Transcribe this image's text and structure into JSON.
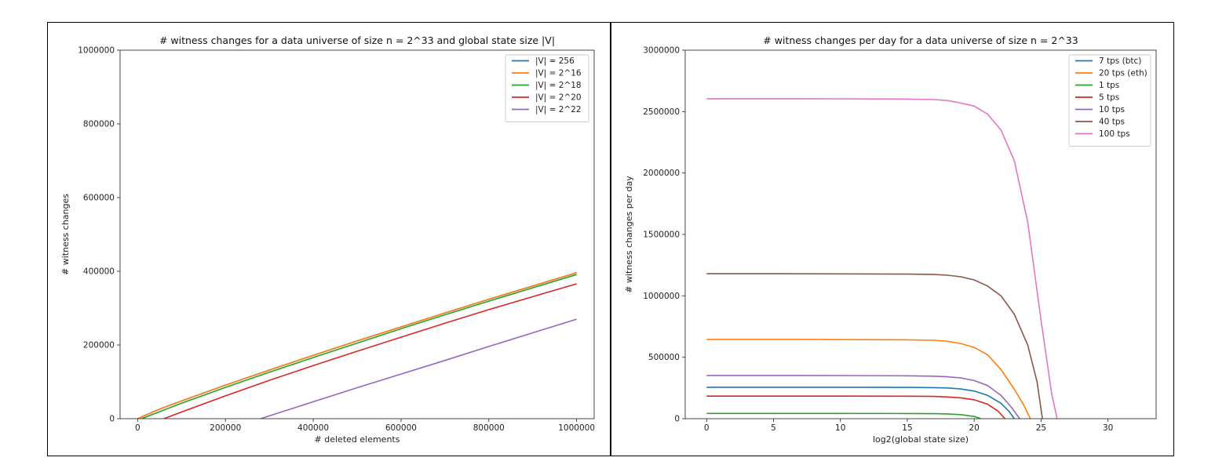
{
  "chart_data": [
    {
      "type": "line",
      "title": "# witness changes for a data universe of size n = 2^33 and global state size |V|",
      "xlabel": "# deleted elements",
      "ylabel": "# witness changes",
      "xlim": [
        -40000,
        1040000
      ],
      "ylim": [
        0,
        1000000
      ],
      "xticks": [
        0,
        200000,
        400000,
        600000,
        800000,
        1000000
      ],
      "yticks": [
        0,
        200000,
        400000,
        600000,
        800000,
        1000000
      ],
      "legend_position": "top-right",
      "series": [
        {
          "name": "|V| = 256",
          "color": "#1f77b4",
          "x": [
            0,
            50000,
            100000,
            200000,
            300000,
            400000,
            500000,
            600000,
            700000,
            800000,
            900000,
            1000000
          ],
          "y": [
            0,
            26000,
            48000,
            91000,
            132000,
            172000,
            211000,
            249000,
            287000,
            324000,
            360000,
            396000
          ]
        },
        {
          "name": "|V| = 2^16",
          "color": "#ff7f0e",
          "x": [
            0,
            50000,
            100000,
            200000,
            300000,
            400000,
            500000,
            600000,
            700000,
            800000,
            900000,
            1000000
          ],
          "y": [
            0,
            26000,
            48000,
            91000,
            132000,
            172000,
            211000,
            249000,
            287000,
            324000,
            360000,
            396000
          ]
        },
        {
          "name": "|V| = 2^18",
          "color": "#2ca02c",
          "x": [
            9000,
            50000,
            100000,
            200000,
            300000,
            400000,
            500000,
            600000,
            700000,
            800000,
            900000,
            1000000
          ],
          "y": [
            0,
            19000,
            42000,
            85000,
            126000,
            166000,
            205000,
            244000,
            282000,
            319000,
            355000,
            391000
          ]
        },
        {
          "name": "|V| = 2^20",
          "color": "#d62728",
          "x": [
            60000,
            100000,
            200000,
            300000,
            400000,
            500000,
            600000,
            700000,
            800000,
            900000,
            1000000
          ],
          "y": [
            0,
            18000,
            62000,
            104000,
            144000,
            183000,
            221000,
            259000,
            296000,
            331000,
            366000
          ]
        },
        {
          "name": "|V| = 2^22",
          "color": "#9467bd",
          "x": [
            280000,
            400000,
            500000,
            600000,
            700000,
            800000,
            900000,
            1000000
          ],
          "y": [
            0,
            46000,
            84000,
            121000,
            158000,
            196000,
            233000,
            270000
          ]
        }
      ]
    },
    {
      "type": "line",
      "title": "# witness changes per day for a data universe of size n = 2^33",
      "xlabel": "log2(global state size)",
      "ylabel": "# witness changes per day",
      "xlim": [
        -1.6,
        33.6
      ],
      "ylim": [
        0,
        3000000
      ],
      "xticks": [
        0,
        5,
        10,
        15,
        20,
        25,
        30
      ],
      "yticks": [
        0,
        500000,
        1000000,
        1500000,
        2000000,
        2500000,
        3000000
      ],
      "legend_position": "top-right",
      "series": [
        {
          "name": "7 tps (btc)",
          "color": "#1f77b4",
          "x": [
            0,
            5,
            10,
            15,
            17,
            18,
            19,
            20,
            21,
            22,
            22.6,
            23
          ],
          "y": [
            256000,
            256000,
            256000,
            255000,
            253000,
            250000,
            242000,
            225000,
            190000,
            125000,
            60000,
            0
          ]
        },
        {
          "name": "20 tps (eth)",
          "color": "#ff7f0e",
          "x": [
            0,
            5,
            10,
            15,
            17,
            18,
            19,
            20,
            21,
            22,
            23,
            23.7,
            24.2
          ],
          "y": [
            645000,
            645000,
            644000,
            642000,
            638000,
            630000,
            612000,
            580000,
            520000,
            400000,
            240000,
            110000,
            0
          ]
        },
        {
          "name": "1 tps",
          "color": "#2ca02c",
          "x": [
            0,
            5,
            10,
            15,
            17,
            18,
            19,
            20,
            20.5
          ],
          "y": [
            43000,
            43000,
            43000,
            42000,
            41000,
            39000,
            33000,
            18000,
            0
          ]
        },
        {
          "name": "5 tps",
          "color": "#d62728",
          "x": [
            0,
            5,
            10,
            15,
            17,
            18,
            19,
            20,
            21,
            21.8,
            22.3
          ],
          "y": [
            184000,
            184000,
            184000,
            183000,
            181000,
            177000,
            170000,
            154000,
            118000,
            60000,
            0
          ]
        },
        {
          "name": "10 tps",
          "color": "#9467bd",
          "x": [
            0,
            5,
            10,
            15,
            17,
            18,
            19,
            20,
            21,
            22,
            22.8,
            23.4
          ],
          "y": [
            352000,
            352000,
            351000,
            349000,
            346000,
            341000,
            332000,
            310000,
            270000,
            190000,
            90000,
            0
          ]
        },
        {
          "name": "40 tps",
          "color": "#8c564b",
          "x": [
            0,
            5,
            10,
            15,
            17,
            18,
            19,
            20,
            21,
            22,
            23,
            24,
            24.7,
            25.1
          ],
          "y": [
            1180000,
            1180000,
            1179000,
            1177000,
            1174000,
            1168000,
            1155000,
            1130000,
            1080000,
            1000000,
            850000,
            600000,
            300000,
            0
          ]
        },
        {
          "name": "100 tps",
          "color": "#e377c2",
          "x": [
            0,
            5,
            10,
            15,
            17,
            18,
            19,
            20,
            21,
            22,
            23,
            24,
            25,
            25.8,
            26.2
          ],
          "y": [
            2605000,
            2605000,
            2604000,
            2602000,
            2598000,
            2590000,
            2570000,
            2545000,
            2480000,
            2350000,
            2100000,
            1600000,
            800000,
            200000,
            0
          ]
        }
      ]
    }
  ]
}
